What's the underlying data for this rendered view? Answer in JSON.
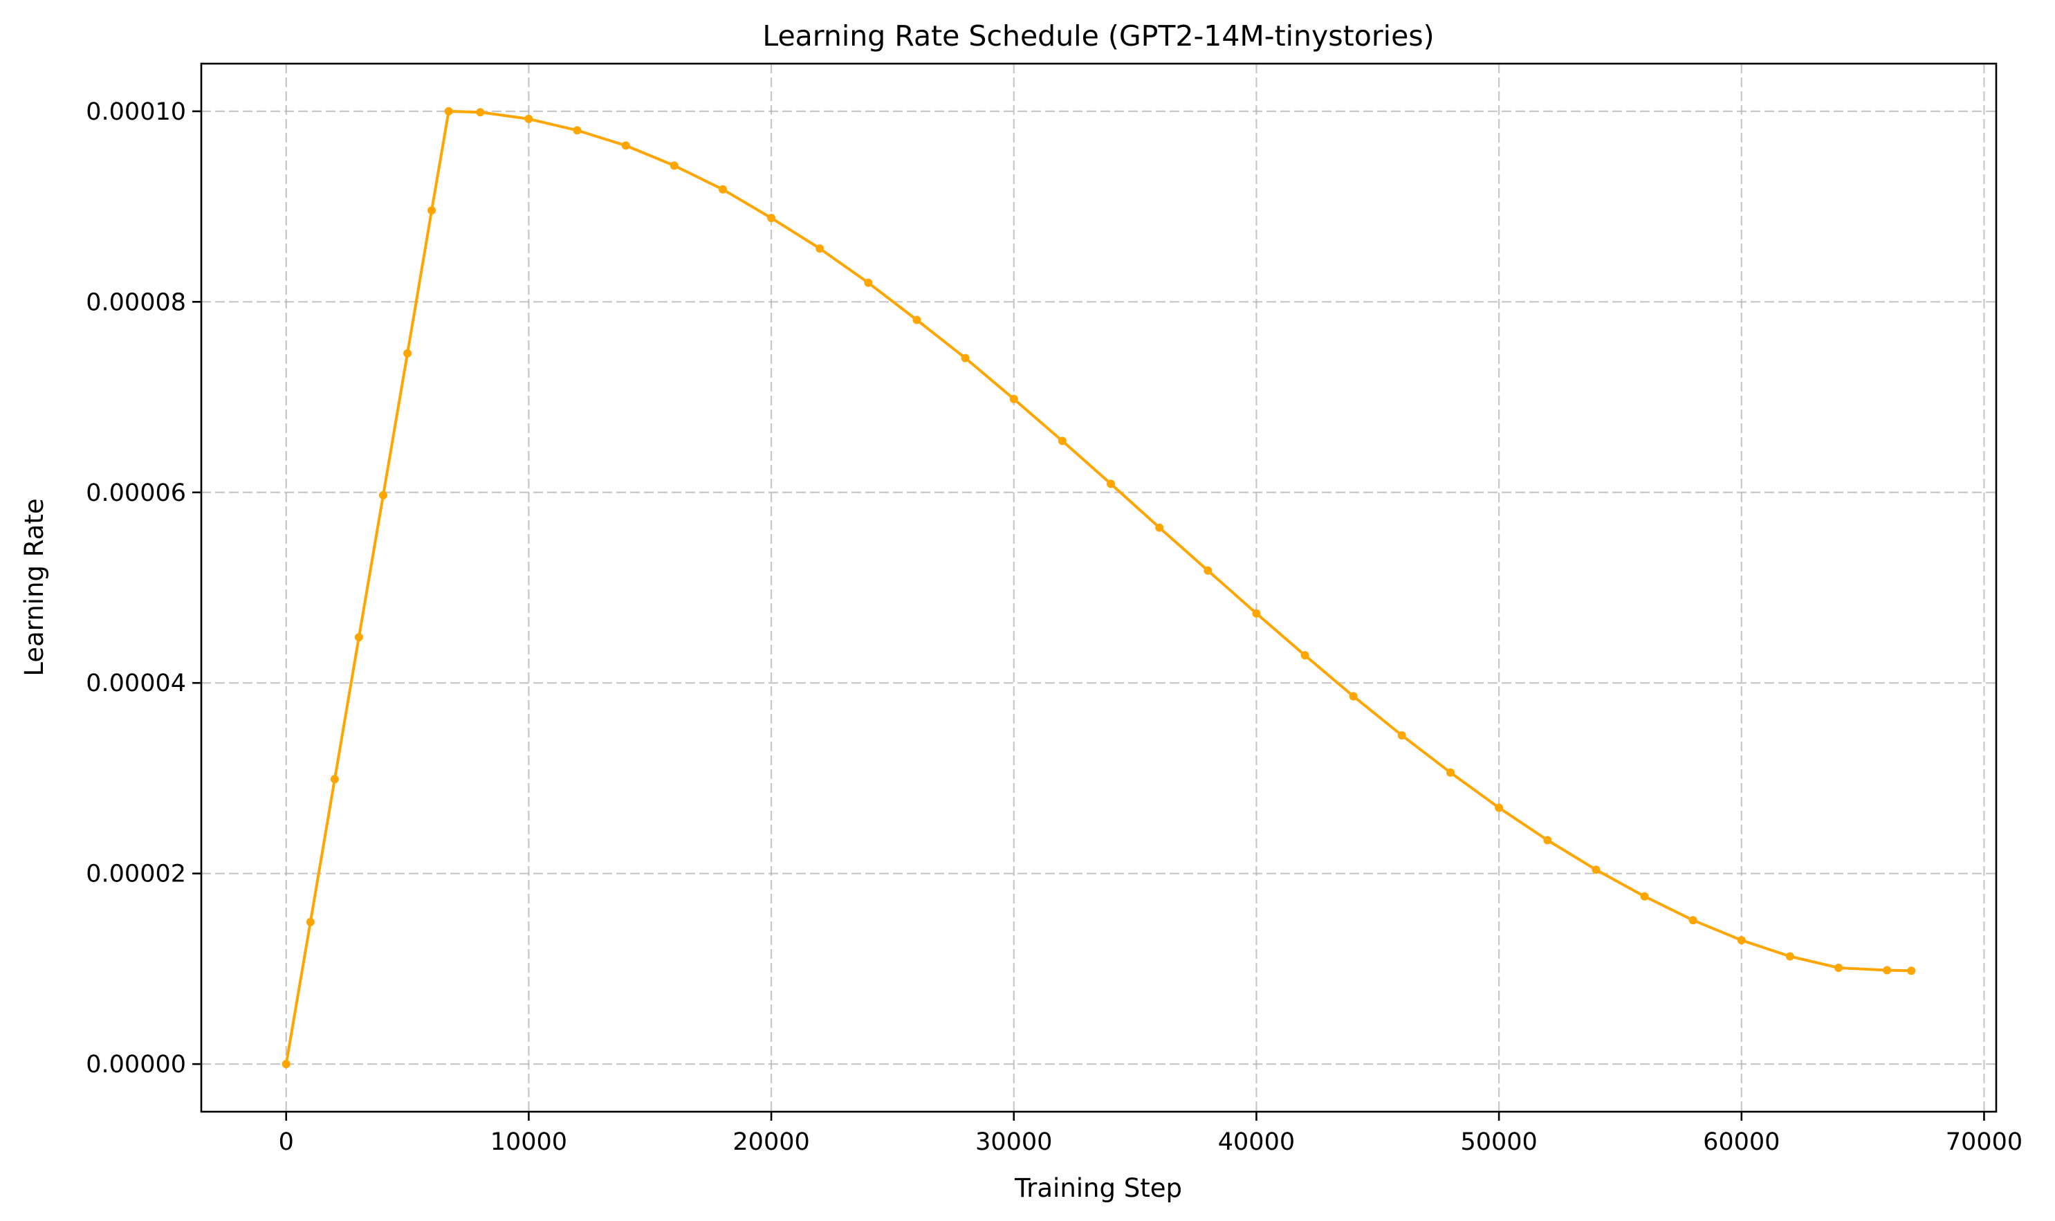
{
  "chart_data": {
    "type": "line",
    "title": "Learning Rate Schedule (GPT2-14M-tinystories)",
    "xlabel": "Training Step",
    "ylabel": "Learning Rate",
    "xlim": [
      -3500,
      70500
    ],
    "ylim": [
      -5e-06,
      0.000105
    ],
    "xticks": [
      0,
      10000,
      20000,
      30000,
      40000,
      50000,
      60000,
      70000
    ],
    "xtick_labels": [
      "0",
      "10000",
      "20000",
      "30000",
      "40000",
      "50000",
      "60000",
      "70000"
    ],
    "yticks": [
      0,
      2e-05,
      4e-05,
      6e-05,
      8e-05,
      0.0001
    ],
    "ytick_labels": [
      "0.00000",
      "0.00002",
      "0.00004",
      "0.00006",
      "0.00008",
      "0.00010"
    ],
    "grid": true,
    "color": "#FFA500",
    "series": [
      {
        "x": [
          0,
          1000,
          2000,
          3000,
          4000,
          5000,
          6000,
          6700,
          8000,
          10000,
          12000,
          14000,
          16000,
          18000,
          20000,
          22000,
          24000,
          26000,
          28000,
          30000,
          32000,
          34000,
          36000,
          38000,
          40000,
          42000,
          44000,
          46000,
          48000,
          50000,
          52000,
          54000,
          56000,
          58000,
          60000,
          62000,
          64000,
          66000,
          67000
        ],
        "y": [
          0,
          1.49e-05,
          2.99e-05,
          4.48e-05,
          5.97e-05,
          7.46e-05,
          8.96e-05,
          0.0001,
          9.99e-05,
          9.92e-05,
          9.8e-05,
          9.64e-05,
          9.43e-05,
          9.18e-05,
          8.88e-05,
          8.56e-05,
          8.2e-05,
          7.81e-05,
          7.41e-05,
          6.98e-05,
          6.54e-05,
          6.09e-05,
          5.63e-05,
          5.18e-05,
          4.73e-05,
          4.29e-05,
          3.86e-05,
          3.45e-05,
          3.06e-05,
          2.69e-05,
          2.35e-05,
          2.04e-05,
          1.76e-05,
          1.51e-05,
          1.3e-05,
          1.13e-05,
          1.01e-05,
          9.85e-06,
          9.8e-06
        ]
      }
    ]
  }
}
